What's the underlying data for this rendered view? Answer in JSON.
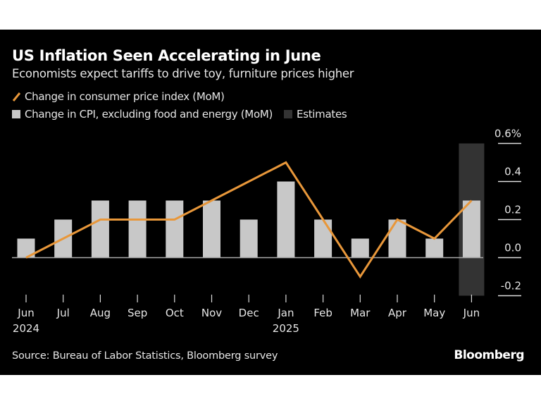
{
  "title": "US Inflation Seen Accelerating in June",
  "subtitle": "Economists expect tariffs to drive toy, furniture prices higher",
  "source": "Source: Bureau of Labor Statistics, Bloomberg survey",
  "brand": "Bloomberg",
  "colors": {
    "background": "#000000",
    "bars": "#c8c8c8",
    "line": "#e8973a",
    "estimates": "#333333"
  },
  "chart_data": {
    "type": "bar+line",
    "categories": [
      "Jun",
      "Jul",
      "Aug",
      "Sep",
      "Oct",
      "Nov",
      "Dec",
      "Jan",
      "Feb",
      "Mar",
      "Apr",
      "May",
      "Jun"
    ],
    "year_labels": [
      "2024",
      "",
      "",
      "",
      "",
      "",
      "",
      "2025",
      "",
      "",
      "",
      "",
      ""
    ],
    "series": [
      {
        "name": "Change in consumer price index (MoM)",
        "type": "line",
        "values": [
          0.0,
          0.1,
          0.2,
          0.2,
          0.2,
          0.3,
          0.4,
          0.5,
          0.2,
          -0.1,
          0.2,
          0.1,
          0.3
        ]
      },
      {
        "name": "Change in CPI, excluding food and energy (MoM)",
        "type": "bar",
        "values": [
          0.1,
          0.2,
          0.3,
          0.3,
          0.3,
          0.3,
          0.2,
          0.4,
          0.2,
          0.1,
          0.2,
          0.1,
          0.3
        ]
      }
    ],
    "estimates": {
      "label": "Estimates",
      "categories_index": [
        12
      ]
    },
    "yticks": [
      "0.6%",
      "0.4",
      "0.2",
      "0.0",
      "-0.2"
    ],
    "ytick_values": [
      0.6,
      0.4,
      0.2,
      0.0,
      -0.2
    ],
    "ylim": [
      -0.2,
      0.6
    ],
    "y_axis_side": "right",
    "legend_position": "top-left"
  }
}
